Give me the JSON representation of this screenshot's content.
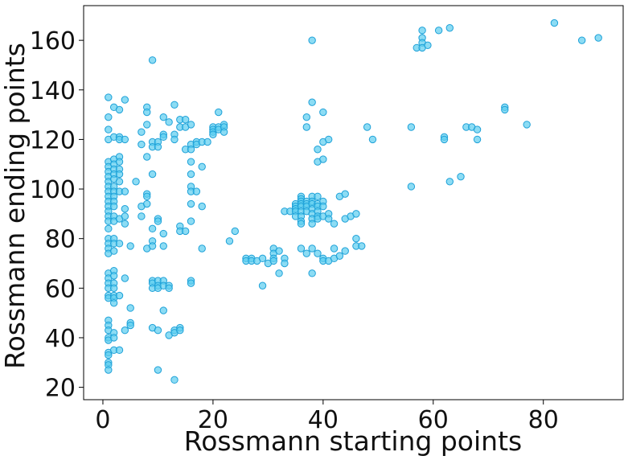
{
  "chart_data": {
    "type": "scatter",
    "title": "",
    "xlabel": "Rossmann starting points",
    "ylabel": "Rossmann ending points",
    "xlim": [
      -3.5,
      94.5
    ],
    "ylim": [
      15,
      174
    ],
    "xticks": [
      0,
      20,
      40,
      60,
      80
    ],
    "yticks": [
      20,
      40,
      60,
      80,
      100,
      120,
      140,
      160
    ],
    "grid": false,
    "legend": "none",
    "colors": {
      "marker_fill": "#5bcdf0",
      "marker_stroke": "#1ea1d8",
      "axis": "#000000"
    },
    "series": [
      {
        "points": [
          [
            1,
            137
          ],
          [
            1,
            129
          ],
          [
            1,
            124
          ],
          [
            1,
            120
          ],
          [
            1,
            111
          ],
          [
            1,
            109
          ],
          [
            1,
            107
          ],
          [
            1,
            105
          ],
          [
            1,
            103
          ],
          [
            1,
            101
          ],
          [
            1,
            99
          ],
          [
            1,
            97
          ],
          [
            1,
            95
          ],
          [
            1,
            93
          ],
          [
            1,
            91
          ],
          [
            1,
            89
          ],
          [
            1,
            87
          ],
          [
            1,
            84
          ],
          [
            1,
            80
          ],
          [
            1,
            78
          ],
          [
            1,
            76
          ],
          [
            1,
            74
          ],
          [
            1,
            66
          ],
          [
            1,
            64
          ],
          [
            1,
            62
          ],
          [
            1,
            60
          ],
          [
            1,
            57
          ],
          [
            1,
            56
          ],
          [
            1,
            47
          ],
          [
            1,
            45
          ],
          [
            1,
            43
          ],
          [
            1,
            40
          ],
          [
            1,
            39
          ],
          [
            1,
            34
          ],
          [
            1,
            33
          ],
          [
            1,
            30
          ],
          [
            1,
            29
          ],
          [
            1,
            27
          ],
          [
            2,
            133
          ],
          [
            2,
            121
          ],
          [
            2,
            112
          ],
          [
            2,
            110
          ],
          [
            2,
            108
          ],
          [
            2,
            106
          ],
          [
            2,
            104
          ],
          [
            2,
            101
          ],
          [
            2,
            99
          ],
          [
            2,
            97
          ],
          [
            2,
            95
          ],
          [
            2,
            93
          ],
          [
            2,
            89
          ],
          [
            2,
            87
          ],
          [
            2,
            80
          ],
          [
            2,
            78
          ],
          [
            2,
            75
          ],
          [
            2,
            67
          ],
          [
            2,
            65
          ],
          [
            2,
            62
          ],
          [
            2,
            60
          ],
          [
            2,
            57
          ],
          [
            2,
            56
          ],
          [
            2,
            54
          ],
          [
            2,
            42
          ],
          [
            2,
            40
          ],
          [
            2,
            35
          ],
          [
            3,
            132
          ],
          [
            3,
            121
          ],
          [
            3,
            120
          ],
          [
            3,
            113
          ],
          [
            3,
            111
          ],
          [
            3,
            108
          ],
          [
            3,
            106
          ],
          [
            3,
            103
          ],
          [
            3,
            99
          ],
          [
            3,
            88
          ],
          [
            3,
            78
          ],
          [
            3,
            57
          ],
          [
            3,
            35
          ],
          [
            4,
            136
          ],
          [
            4,
            120
          ],
          [
            4,
            99
          ],
          [
            4,
            92
          ],
          [
            4,
            89
          ],
          [
            4,
            86
          ],
          [
            4,
            64
          ],
          [
            4,
            43
          ],
          [
            5,
            77
          ],
          [
            5,
            52
          ],
          [
            5,
            46
          ],
          [
            5,
            45
          ],
          [
            6,
            103
          ],
          [
            7,
            123
          ],
          [
            7,
            118
          ],
          [
            7,
            93
          ],
          [
            7,
            89
          ],
          [
            8,
            133
          ],
          [
            8,
            131
          ],
          [
            8,
            126
          ],
          [
            8,
            113
          ],
          [
            8,
            98
          ],
          [
            8,
            97
          ],
          [
            8,
            94
          ],
          [
            8,
            76
          ],
          [
            9,
            152
          ],
          [
            9,
            119
          ],
          [
            9,
            117
          ],
          [
            9,
            106
          ],
          [
            9,
            84
          ],
          [
            9,
            79
          ],
          [
            9,
            77
          ],
          [
            9,
            63
          ],
          [
            9,
            62
          ],
          [
            9,
            60
          ],
          [
            9,
            44
          ],
          [
            10,
            119
          ],
          [
            10,
            117
          ],
          [
            10,
            88
          ],
          [
            10,
            87
          ],
          [
            10,
            63
          ],
          [
            10,
            61
          ],
          [
            10,
            60
          ],
          [
            10,
            43
          ],
          [
            10,
            27
          ],
          [
            11,
            129
          ],
          [
            11,
            122
          ],
          [
            11,
            121
          ],
          [
            11,
            82
          ],
          [
            11,
            77
          ],
          [
            11,
            63
          ],
          [
            11,
            61
          ],
          [
            11,
            51
          ],
          [
            12,
            127
          ],
          [
            12,
            61
          ],
          [
            12,
            60
          ],
          [
            12,
            41
          ],
          [
            13,
            134
          ],
          [
            13,
            122
          ],
          [
            13,
            120
          ],
          [
            13,
            43
          ],
          [
            13,
            42
          ],
          [
            13,
            23
          ],
          [
            14,
            128
          ],
          [
            14,
            125
          ],
          [
            14,
            85
          ],
          [
            14,
            83
          ],
          [
            14,
            44
          ],
          [
            14,
            43
          ],
          [
            15,
            128
          ],
          [
            15,
            125
          ],
          [
            15,
            116
          ],
          [
            15,
            83
          ],
          [
            16,
            126
          ],
          [
            16,
            118
          ],
          [
            16,
            116
          ],
          [
            16,
            111
          ],
          [
            16,
            106
          ],
          [
            16,
            101
          ],
          [
            16,
            99
          ],
          [
            16,
            94
          ],
          [
            16,
            87
          ],
          [
            16,
            63
          ],
          [
            16,
            62
          ],
          [
            17,
            119
          ],
          [
            17,
            118
          ],
          [
            17,
            99
          ],
          [
            18,
            119
          ],
          [
            18,
            109
          ],
          [
            18,
            93
          ],
          [
            18,
            76
          ],
          [
            19,
            119
          ],
          [
            20,
            125
          ],
          [
            20,
            124
          ],
          [
            20,
            123
          ],
          [
            20,
            122
          ],
          [
            21,
            131
          ],
          [
            21,
            125
          ],
          [
            21,
            124
          ],
          [
            22,
            126
          ],
          [
            22,
            125
          ],
          [
            22,
            123
          ],
          [
            23,
            79
          ],
          [
            24,
            83
          ],
          [
            26,
            72
          ],
          [
            26,
            71
          ],
          [
            27,
            72
          ],
          [
            27,
            71
          ],
          [
            28,
            71
          ],
          [
            29,
            72
          ],
          [
            29,
            61
          ],
          [
            30,
            70
          ],
          [
            31,
            76
          ],
          [
            31,
            74
          ],
          [
            31,
            72
          ],
          [
            31,
            71
          ],
          [
            32,
            75
          ],
          [
            32,
            66
          ],
          [
            33,
            91
          ],
          [
            33,
            72
          ],
          [
            33,
            70
          ],
          [
            34,
            91
          ],
          [
            35,
            94
          ],
          [
            35,
            93
          ],
          [
            35,
            92
          ],
          [
            35,
            91
          ],
          [
            35,
            89
          ],
          [
            36,
            97
          ],
          [
            36,
            96
          ],
          [
            36,
            95
          ],
          [
            36,
            94
          ],
          [
            36,
            93
          ],
          [
            36,
            91
          ],
          [
            36,
            89
          ],
          [
            36,
            87
          ],
          [
            36,
            86
          ],
          [
            36,
            76
          ],
          [
            37,
            129
          ],
          [
            37,
            125
          ],
          [
            37,
            95
          ],
          [
            37,
            94
          ],
          [
            37,
            93
          ],
          [
            37,
            91
          ],
          [
            37,
            74
          ],
          [
            38,
            160
          ],
          [
            38,
            135
          ],
          [
            38,
            97
          ],
          [
            38,
            95
          ],
          [
            38,
            94
          ],
          [
            38,
            92
          ],
          [
            38,
            90
          ],
          [
            38,
            88
          ],
          [
            38,
            86
          ],
          [
            38,
            76
          ],
          [
            38,
            66
          ],
          [
            39,
            116
          ],
          [
            39,
            111
          ],
          [
            39,
            97
          ],
          [
            39,
            94
          ],
          [
            39,
            93
          ],
          [
            39,
            91
          ],
          [
            39,
            89
          ],
          [
            39,
            88
          ],
          [
            39,
            74
          ],
          [
            40,
            131
          ],
          [
            40,
            119
          ],
          [
            40,
            112
          ],
          [
            40,
            95
          ],
          [
            40,
            93
          ],
          [
            40,
            89
          ],
          [
            40,
            72
          ],
          [
            40,
            71
          ],
          [
            41,
            120
          ],
          [
            41,
            90
          ],
          [
            41,
            88
          ],
          [
            41,
            71
          ],
          [
            42,
            86
          ],
          [
            42,
            76
          ],
          [
            42,
            72
          ],
          [
            43,
            97
          ],
          [
            43,
            73
          ],
          [
            44,
            98
          ],
          [
            44,
            88
          ],
          [
            44,
            75
          ],
          [
            45,
            89
          ],
          [
            46,
            90
          ],
          [
            46,
            80
          ],
          [
            46,
            77
          ],
          [
            47,
            77
          ],
          [
            48,
            125
          ],
          [
            49,
            120
          ],
          [
            56,
            125
          ],
          [
            56,
            101
          ],
          [
            57,
            157
          ],
          [
            58,
            164
          ],
          [
            58,
            161
          ],
          [
            58,
            159
          ],
          [
            58,
            157
          ],
          [
            59,
            158
          ],
          [
            61,
            164
          ],
          [
            62,
            121
          ],
          [
            62,
            120
          ],
          [
            63,
            165
          ],
          [
            63,
            103
          ],
          [
            65,
            105
          ],
          [
            66,
            125
          ],
          [
            67,
            125
          ],
          [
            68,
            124
          ],
          [
            68,
            120
          ],
          [
            73,
            133
          ],
          [
            73,
            132
          ],
          [
            77,
            126
          ],
          [
            82,
            167
          ],
          [
            87,
            160
          ],
          [
            90,
            161
          ]
        ]
      }
    ]
  }
}
